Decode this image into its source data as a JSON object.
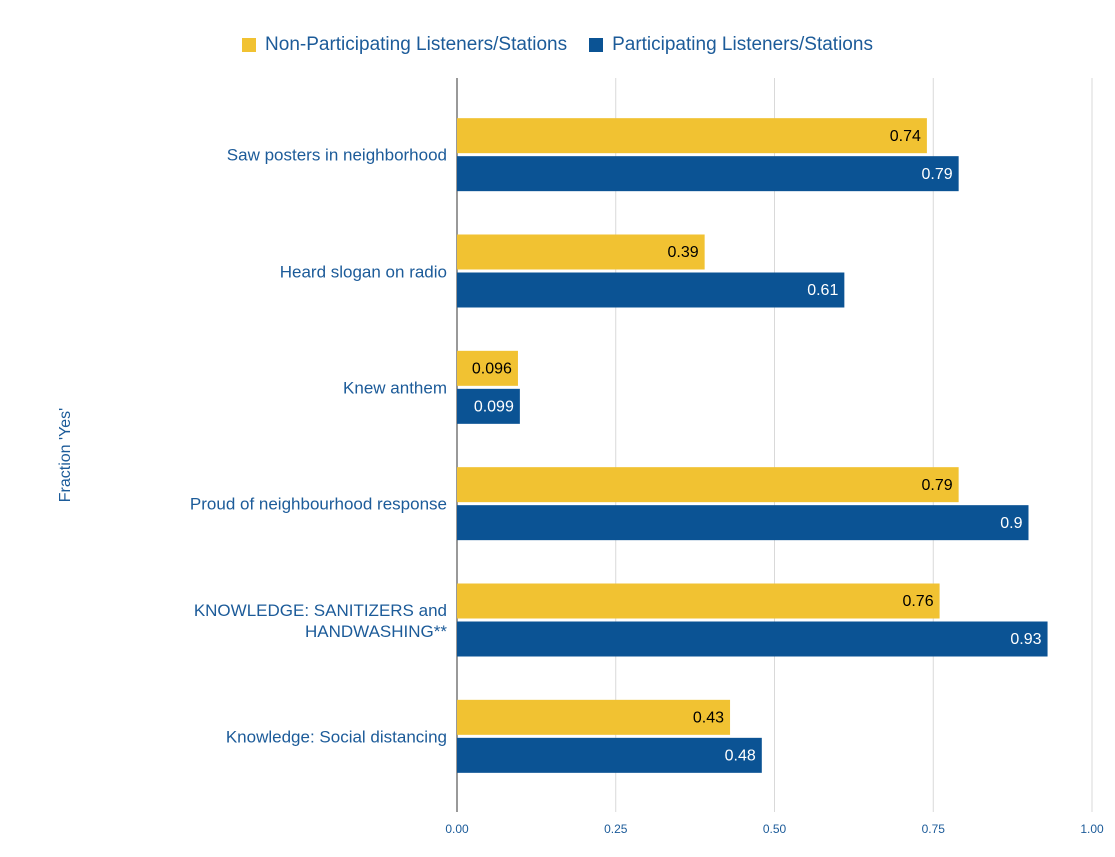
{
  "chart_data": {
    "type": "hbar",
    "y_axis_label": "Fraction 'Yes'",
    "categories": [
      "Saw posters in neighborhood",
      "Heard slogan on radio",
      "Knew anthem",
      "Proud of neighbourhood response",
      "KNOWLEDGE: SANITIZERS and HANDWASHING**",
      "Knowledge: Social distancing"
    ],
    "series": [
      {
        "name": "Non-Participating Listeners/Stations",
        "color": "#f1c232",
        "label_color": "#000000",
        "values": [
          0.74,
          0.39,
          0.096,
          0.79,
          0.76,
          0.43
        ]
      },
      {
        "name": "Participating Listeners/Stations",
        "color": "#0b5394",
        "label_color": "#ffffff",
        "values": [
          0.79,
          0.61,
          0.099,
          0.9,
          0.93,
          0.48
        ]
      }
    ],
    "xlim": [
      0,
      1
    ],
    "xticks": [
      {
        "value": 0,
        "label": "0.00"
      },
      {
        "value": 0.25,
        "label": "0.25"
      },
      {
        "value": 0.5,
        "label": "0.50"
      },
      {
        "value": 0.75,
        "label": "0.75"
      },
      {
        "value": 1,
        "label": "1.00"
      }
    ],
    "grid": true,
    "legend": "top"
  }
}
